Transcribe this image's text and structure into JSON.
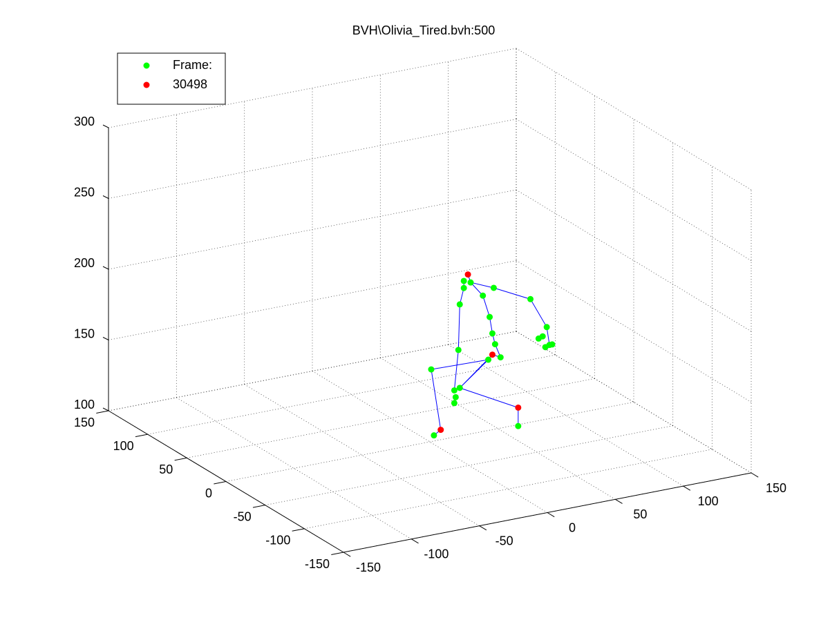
{
  "chart_data": {
    "type": "scatter3d",
    "title": "BVH\\Olivia_Tired.bvh:500",
    "xlim": [
      -150,
      150
    ],
    "ylim": [
      -150,
      150
    ],
    "zlim": [
      100,
      300
    ],
    "xticks": [
      -150,
      -100,
      -50,
      0,
      50,
      100,
      150
    ],
    "yticks": [
      -150,
      -100,
      -50,
      0,
      50,
      100,
      150
    ],
    "zticks": [
      100,
      150,
      200,
      250,
      300
    ],
    "grid": true,
    "legend": "upper left",
    "series": [
      {
        "type": "line",
        "color": "#0000ff",
        "x": [
          28,
          30,
          47,
          74,
          86,
          88,
          null,
          25,
          25,
          22,
          21,
          18,
          null,
          30,
          39,
          44,
          46,
          48,
          52,
          46,
          22,
          65,
          65,
          null,
          3,
          8,
          1,
          43,
          22
        ],
        "y": [
          0,
          0,
          0,
          0,
          0,
          0,
          null,
          0,
          0,
          0,
          0,
          0,
          null,
          0,
          0,
          0,
          0,
          0,
          0,
          0,
          0,
          0,
          0,
          null,
          0,
          0,
          0,
          0,
          0
        ],
        "z": [
          213,
          207,
          200,
          187,
          165,
          152,
          null,
          209,
          204,
          193,
          161,
          133,
          null,
          207,
          196,
          180,
          168,
          160,
          150,
          153,
          134,
          112,
          99,
          null,
          104,
          107,
          151,
          150,
          134
        ]
      },
      {
        "type": "scatter",
        "name": "Frame:",
        "color": "#00ff00",
        "x": [
          25,
          30,
          25,
          39,
          47,
          74,
          86,
          83,
          88,
          90,
          80,
          85,
          22,
          44,
          46,
          48,
          52,
          43,
          21,
          1,
          18,
          22,
          19,
          18,
          3,
          65
        ],
        "y": [
          0,
          0,
          0,
          0,
          0,
          0,
          0,
          0,
          0,
          0,
          0,
          0,
          0,
          0,
          0,
          0,
          0,
          0,
          0,
          0,
          0,
          0,
          0,
          0,
          0,
          0
        ],
        "z": [
          209,
          207,
          204,
          196,
          200,
          187,
          165,
          159,
          152,
          152,
          158,
          151,
          193,
          180,
          168,
          160,
          150,
          150,
          161,
          151,
          133,
          134,
          128,
          124,
          104,
          99
        ]
      },
      {
        "type": "scatter",
        "name": "30498",
        "color": "#ff0000",
        "x": [
          28,
          46,
          8,
          65
        ],
        "y": [
          0,
          0,
          0,
          0
        ],
        "z": [
          213,
          153,
          107,
          112
        ]
      }
    ]
  }
}
